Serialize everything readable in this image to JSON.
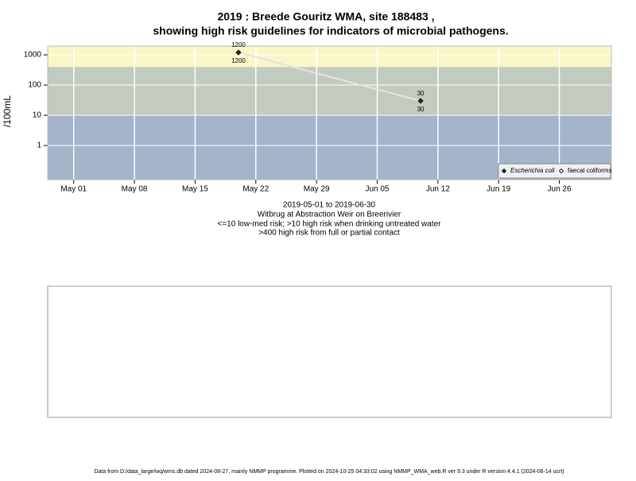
{
  "chart_data": {
    "type": "line",
    "title": "2019 : Breede Gouritz WMA, site 188483 ,",
    "title2": "showing high risk guidelines for indicators of microbial pathogens.",
    "subtitle": [
      "2019-05-01 to 2019-06-30",
      "Witbrug at Abstraction Weir on Breerivier",
      "<=10 low-med risk; >10 high risk when drinking untreated water",
      ">400 high risk from full or partial contact"
    ],
    "y_label": "/100mL",
    "log_y": true,
    "grid": true,
    "legend_position": "lower right",
    "x": [
      "2019-05-20",
      "2019-06-10"
    ],
    "series": [
      {
        "name": "Escherichia coli",
        "color": "#222222",
        "line_color": "#e4e4e4",
        "values": [
          1200,
          30
        ],
        "value_labels": [
          "1200",
          "30"
        ]
      },
      {
        "name": "faecal coliforms",
        "color": "#222222",
        "values": [
          null,
          null
        ]
      }
    ],
    "bands": [
      {
        "from": 0.074,
        "to": 10,
        "color": "#a3b4cb"
      },
      {
        "from": 10,
        "to": 400,
        "color": "#c3cbbf"
      },
      {
        "from": 400,
        "to": 1950,
        "color": "#fbf6c8"
      }
    ],
    "xlim": [
      "2019-04-28",
      "2019-07-02"
    ],
    "xticks": [
      {
        "value": "2019-05-01",
        "label": "May 01"
      },
      {
        "value": "2019-05-08",
        "label": "May 08"
      },
      {
        "value": "2019-05-15",
        "label": "May 15"
      },
      {
        "value": "2019-05-22",
        "label": "May 22"
      },
      {
        "value": "2019-05-29",
        "label": "May 29"
      },
      {
        "value": "2019-06-05",
        "label": "Jun 05"
      },
      {
        "value": "2019-06-12",
        "label": "Jun 12"
      },
      {
        "value": "2019-06-19",
        "label": "Jun 19"
      },
      {
        "value": "2019-06-26",
        "label": "Jun 26"
      }
    ],
    "ylim": [
      0.074,
      1950
    ],
    "yticks": [
      1,
      10,
      100,
      1000
    ],
    "footer": "Data from D:/data_large/wq/wms.db dated 2024-08-27, mainly NMMP programme. Plotted on 2024-10-25 04:33:02 using NMMP_WMA_web.R ver 9.3 under R version 4.4.1 (2024-06-14 ucrt)"
  }
}
